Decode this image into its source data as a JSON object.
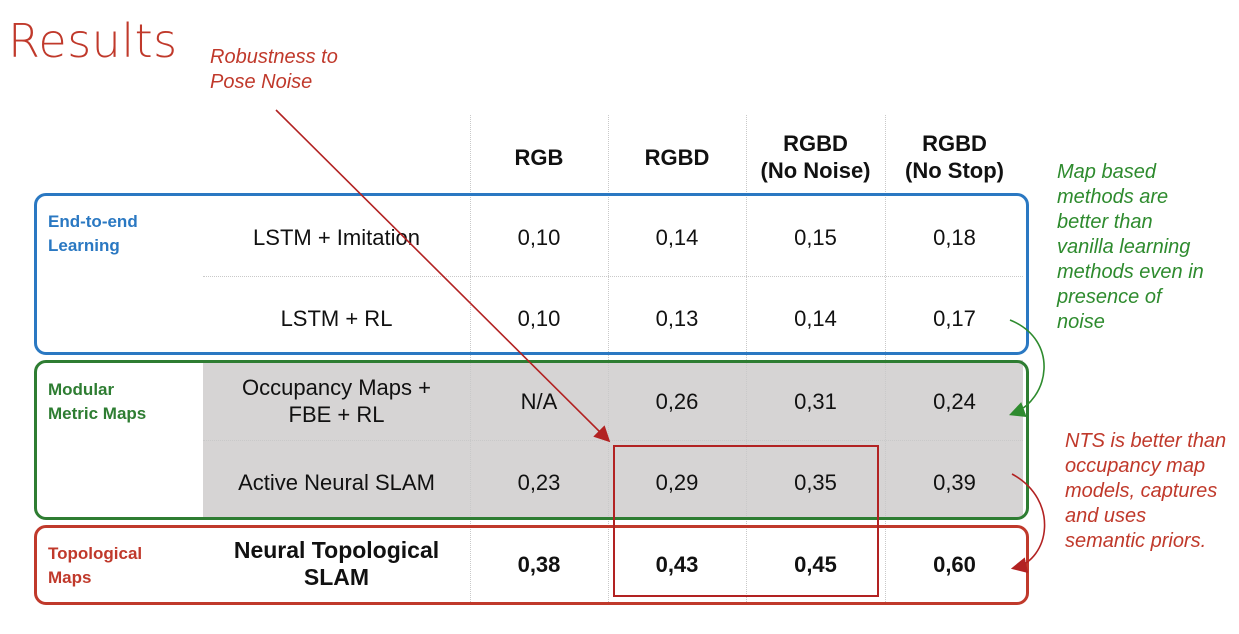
{
  "title": "Results",
  "annotations": {
    "robustness": "Robustness to\nPose Noise",
    "map_based": "Map based\nmethods are\nbetter than\nvanilla learning\nmethods even in\npresence of\nnoise",
    "nts_better": "NTS is better than\noccupancy map\nmodels, captures\nand uses\nsemantic priors."
  },
  "table": {
    "columns": [
      "RGB",
      "RGBD",
      "RGBD\n(No Noise)",
      "RGBD\n(No Stop)"
    ],
    "groups": [
      "End-to-end\nLearning",
      "Modular\nMetric Maps",
      "Topological\nMaps"
    ],
    "rows": [
      {
        "method": "LSTM + Imitation",
        "values": [
          "0,10",
          "0,14",
          "0,15",
          "0,18"
        ]
      },
      {
        "method": "LSTM + RL",
        "values": [
          "0,10",
          "0,13",
          "0,14",
          "0,17"
        ]
      },
      {
        "method": "Occupancy Maps +\nFBE + RL",
        "values": [
          "N/A",
          "0,26",
          "0,31",
          "0,24"
        ]
      },
      {
        "method": "Active Neural SLAM",
        "values": [
          "0,23",
          "0,29",
          "0,35",
          "0,39"
        ]
      },
      {
        "method": "Neural Topological\nSLAM",
        "values": [
          "0,38",
          "0,43",
          "0,45",
          "0,60"
        ]
      }
    ]
  },
  "colors": {
    "end_to_end": "#2a78c2",
    "modular": "#2e7d32",
    "topological": "#c0392b",
    "highlight": "#b22222",
    "gray_fill": "#d6d4d4"
  }
}
